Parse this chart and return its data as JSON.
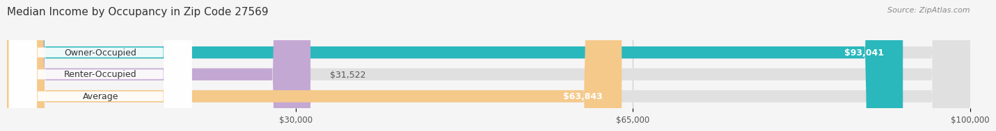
{
  "title": "Median Income by Occupancy in Zip Code 27569",
  "source": "Source: ZipAtlas.com",
  "categories": [
    "Owner-Occupied",
    "Renter-Occupied",
    "Average"
  ],
  "values": [
    93041,
    31522,
    63843
  ],
  "bar_colors": [
    "#2ab8bc",
    "#c4a8d4",
    "#f5c98a"
  ],
  "bar_labels": [
    "$93,041",
    "$31,522",
    "$63,843"
  ],
  "x_tick_labels": [
    "$30,000",
    "$65,000",
    "$100,000"
  ],
  "x_ticks": [
    30000,
    65000,
    100000
  ],
  "x_min": 0,
  "x_max": 100000,
  "bg_color": "#f5f5f5",
  "bar_bg_color": "#e0e0e0",
  "title_fontsize": 11,
  "source_fontsize": 8,
  "label_fontsize": 9,
  "tick_fontsize": 8.5
}
